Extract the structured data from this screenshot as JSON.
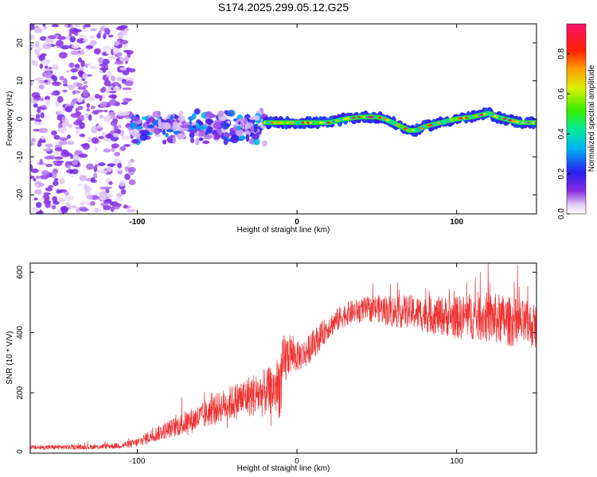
{
  "title": "S174.2025.299.05.12.G25",
  "colors": {
    "snr_line": "#ee3333",
    "axis": "#000000",
    "background": "#ffffff"
  },
  "chart_data": [
    {
      "type": "heatmap",
      "title": "S174.2025.299.05.12.G25",
      "xlabel": "Height of straight line (km)",
      "ylabel": "Frequency (Hz)",
      "xlim": [
        -167,
        150
      ],
      "ylim": [
        -25,
        25
      ],
      "xticks": [
        -100,
        0,
        100
      ],
      "xtick_labels": [
        "-100",
        "0",
        "100"
      ],
      "yticks": [
        -20,
        -10,
        0,
        10,
        20
      ],
      "ytick_labels": [
        "-20",
        "-10",
        "0",
        "10",
        "20"
      ],
      "colorbar": {
        "label": "Normalized spectral amplitude",
        "range": [
          0,
          0.95
        ],
        "ticks": [
          0.0,
          0.2,
          0.4,
          0.6,
          0.8
        ],
        "tick_labels": [
          "0.0",
          "0.2",
          "0.4",
          "0.6",
          "0.8"
        ]
      },
      "regions": [
        {
          "name": "noise",
          "x_range": [
            -167,
            -103
          ],
          "freq_range": [
            -25,
            25
          ],
          "amplitude_range": [
            0.02,
            0.15
          ]
        },
        {
          "name": "scattered",
          "x_range": [
            -103,
            -20
          ],
          "center_freq": -2,
          "spread_hz": 5,
          "amplitude_range": [
            0.05,
            0.35
          ]
        },
        {
          "name": "tone",
          "x_range": [
            -20,
            150
          ],
          "amplitude_range": [
            0.3,
            0.9
          ]
        }
      ],
      "ridge": {
        "x": [
          -20,
          -10,
          0,
          10,
          20,
          30,
          40,
          50,
          55,
          60,
          65,
          70,
          75,
          80,
          90,
          100,
          110,
          120,
          125,
          130,
          140,
          150
        ],
        "freq": [
          -1,
          -1,
          -1,
          -1,
          -1,
          0,
          0.5,
          0.5,
          0,
          -1,
          -2,
          -3,
          -3,
          -2,
          -1,
          0,
          0.5,
          1.5,
          0.5,
          0,
          -1,
          -1
        ]
      }
    },
    {
      "type": "line",
      "xlabel": "Height of straight line (km)",
      "ylabel": "SNR (10 * V/V)",
      "xlim": [
        -167,
        150
      ],
      "ylim": [
        0,
        630
      ],
      "xticks": [
        -100,
        0,
        100
      ],
      "xtick_labels": [
        "-100",
        "0",
        "100"
      ],
      "yticks": [
        0,
        200,
        400,
        600
      ],
      "ytick_labels": [
        "0",
        "200",
        "400",
        "600"
      ],
      "series": [
        {
          "name": "SNR",
          "x": [
            -167,
            -150,
            -130,
            -110,
            -100,
            -90,
            -80,
            -70,
            -60,
            -50,
            -40,
            -30,
            -20,
            -15,
            -10,
            -8,
            -5,
            0,
            5,
            10,
            15,
            20,
            25,
            30,
            40,
            50,
            60,
            70,
            80,
            90,
            100,
            110,
            120,
            130,
            140,
            150
          ],
          "y": [
            18,
            20,
            20,
            25,
            35,
            60,
            80,
            100,
            120,
            150,
            170,
            190,
            200,
            210,
            230,
            300,
            330,
            320,
            330,
            360,
            390,
            420,
            440,
            460,
            475,
            480,
            470,
            470,
            460,
            455,
            450,
            455,
            450,
            440,
            430,
            420
          ],
          "noise": [
            8,
            8,
            8,
            10,
            15,
            25,
            30,
            40,
            45,
            50,
            60,
            70,
            80,
            80,
            120,
            100,
            70,
            50,
            50,
            50,
            45,
            40,
            40,
            40,
            40,
            45,
            55,
            55,
            60,
            65,
            70,
            80,
            85,
            85,
            80,
            75
          ]
        }
      ]
    }
  ]
}
